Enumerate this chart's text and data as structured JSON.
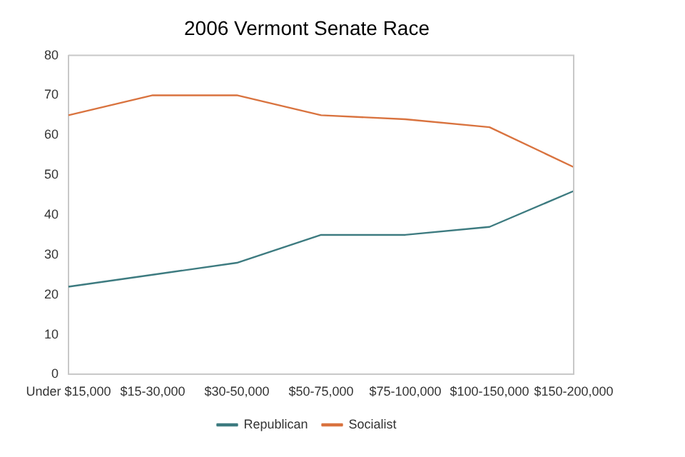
{
  "chart_data": {
    "type": "line",
    "title": "2006 Vermont Senate Race",
    "categories": [
      "Under $15,000",
      "$15-30,000",
      "$30-50,000",
      "$50-75,000",
      "$75-100,000",
      "$100-150,000",
      "$150-200,000"
    ],
    "series": [
      {
        "name": "Republican",
        "color": "#3d7b80",
        "values": [
          22,
          25,
          28,
          35,
          35,
          37,
          46
        ]
      },
      {
        "name": "Socialist",
        "color": "#d9733f",
        "values": [
          65,
          70,
          70,
          65,
          64,
          62,
          52
        ]
      }
    ],
    "ylim": [
      0,
      80
    ],
    "yticks": [
      0,
      10,
      20,
      30,
      40,
      50,
      60,
      70,
      80
    ],
    "grid": false,
    "legend": "bottom",
    "marker": "none",
    "line_style": "solid"
  }
}
